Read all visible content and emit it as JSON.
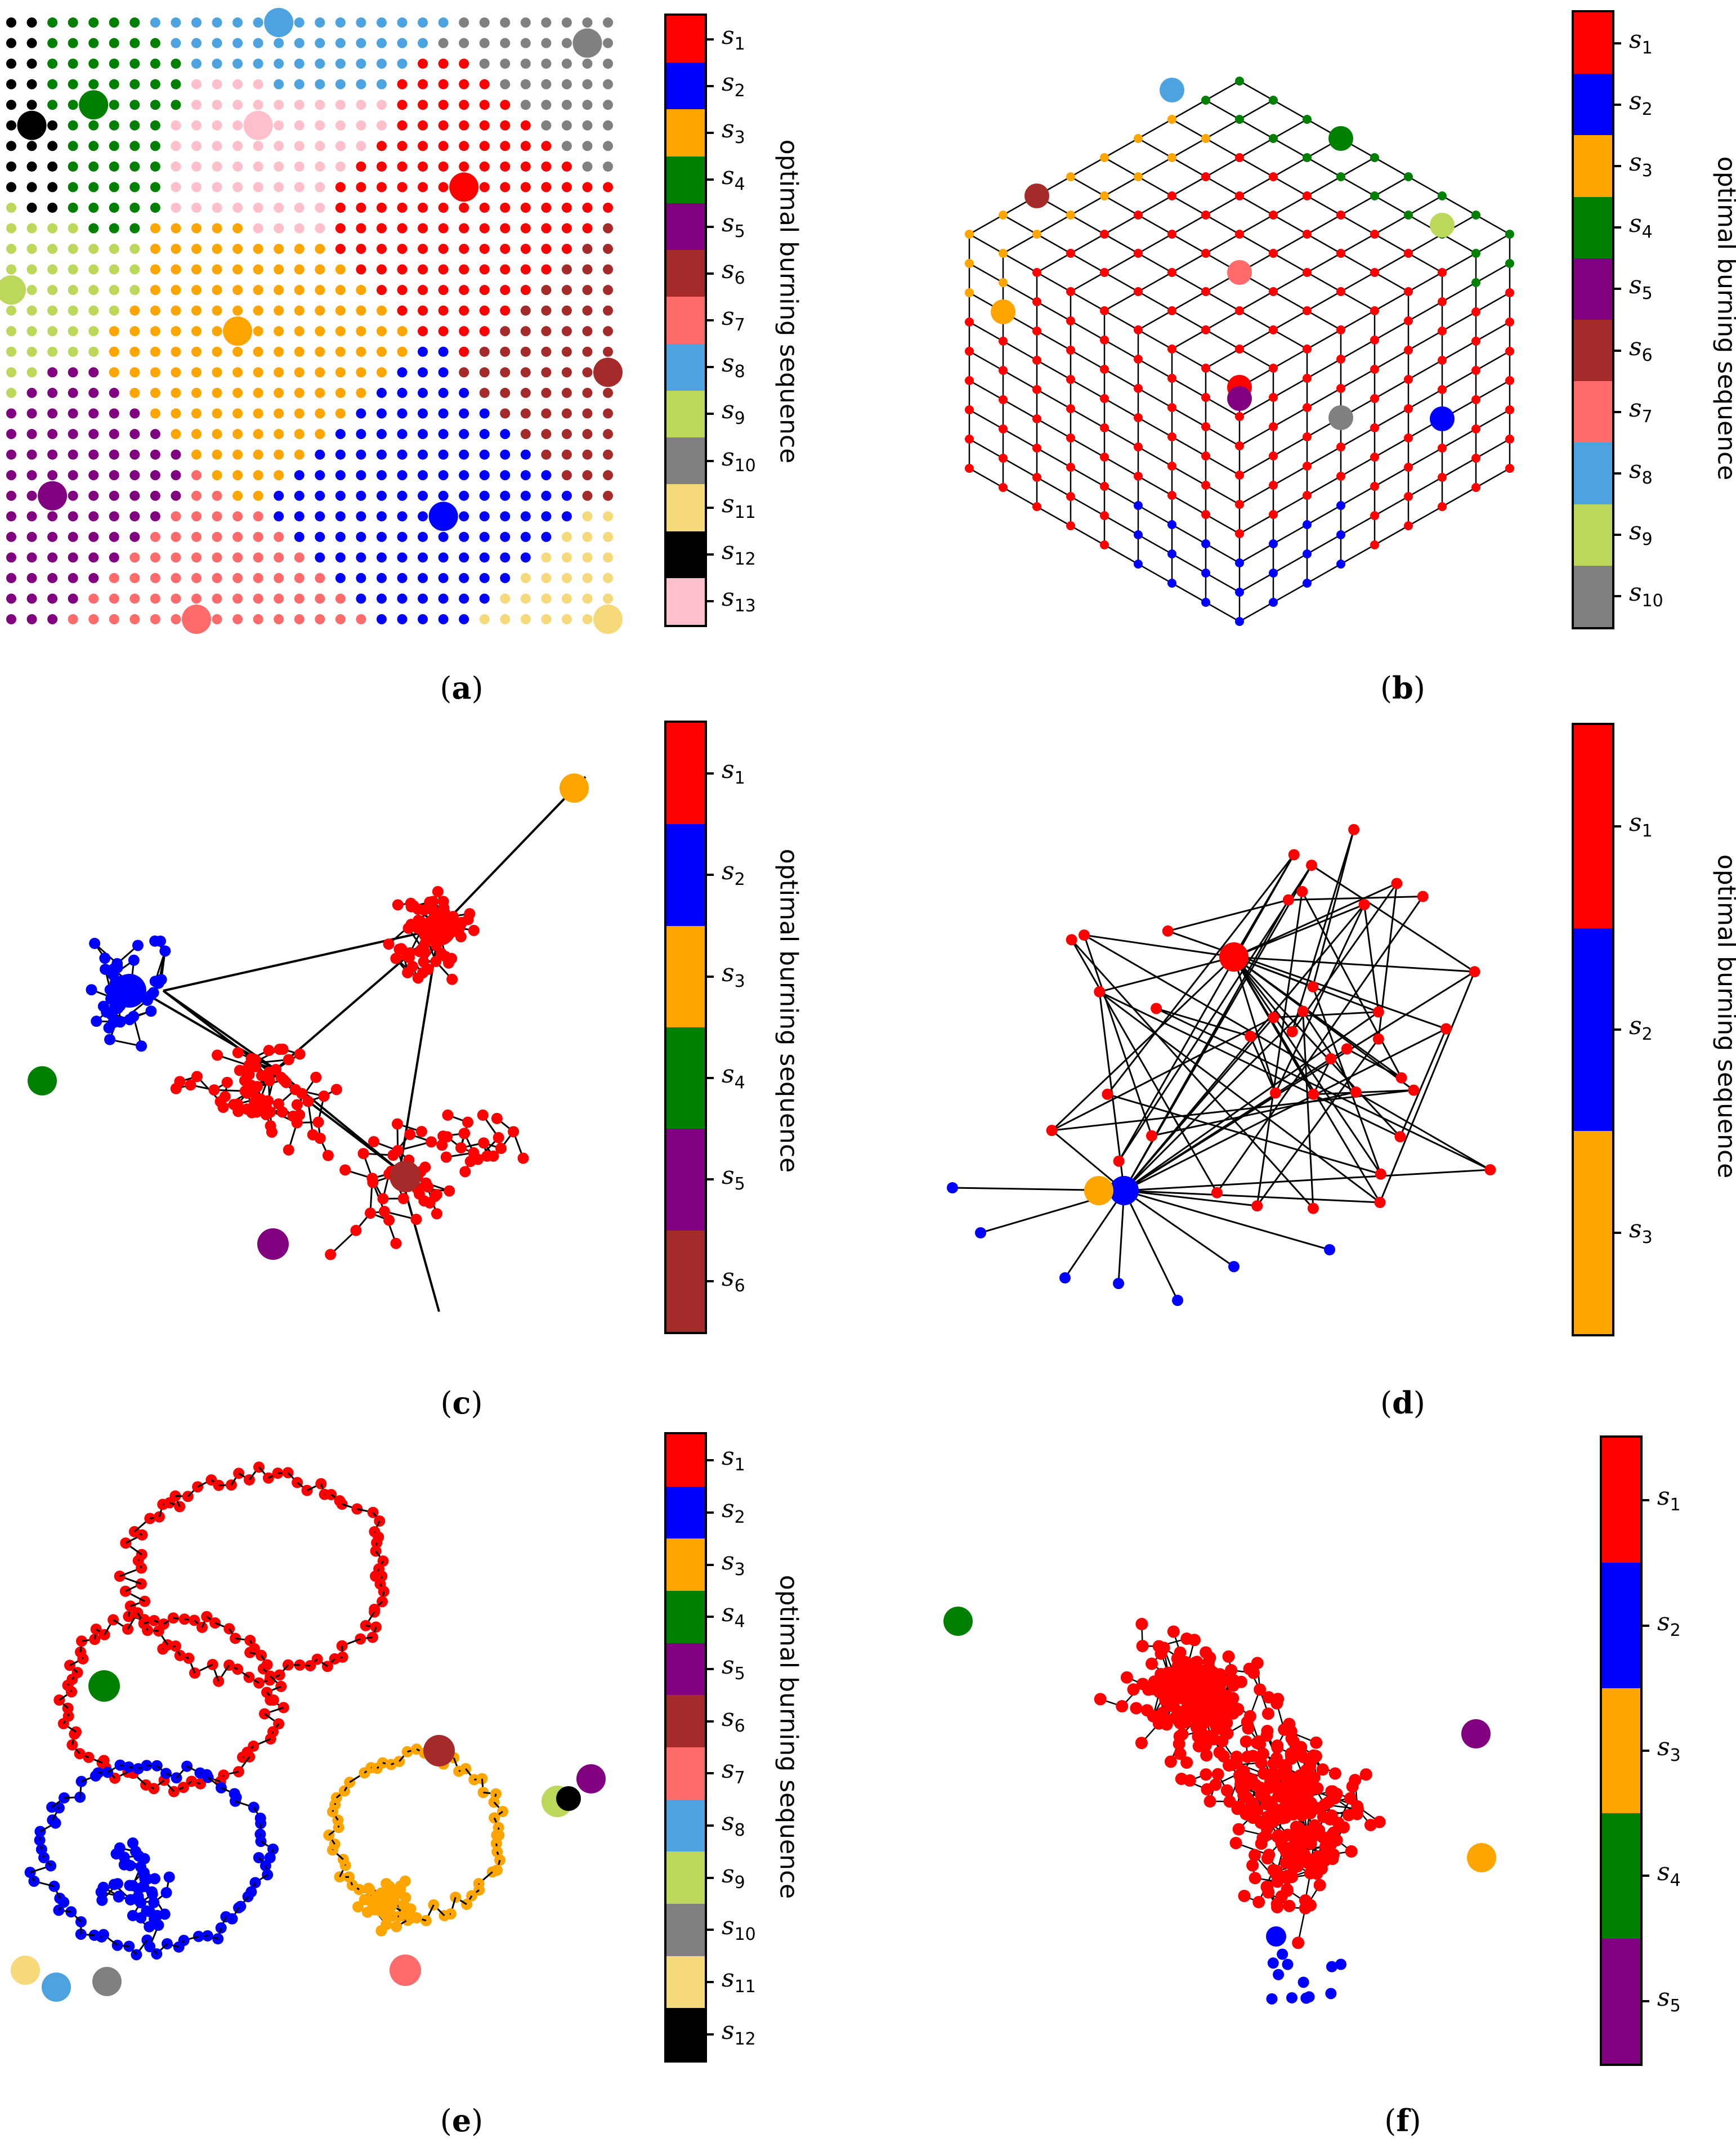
{
  "figure": {
    "colorbar_title": "optimal burning sequence",
    "colors": {
      "s1": "#ff0000",
      "s2": "#0000ff",
      "s3": "#ffa500",
      "s4": "#008000",
      "s5": "#800080",
      "s6": "#a52a2a",
      "s7": "#ff6b6b",
      "s8": "#4da3e0",
      "s9": "#bcd85a",
      "s10": "#808080",
      "s11": "#f5d97a",
      "s12": "#000000",
      "s13": "#ffc0cb",
      "edge": "#000000"
    },
    "panels": [
      {
        "id": "a",
        "caption": "a",
        "graph": "square-grid",
        "sequence_length": 13
      },
      {
        "id": "b",
        "caption": "b",
        "graph": "cube-lattice",
        "sequence_length": 10
      },
      {
        "id": "c",
        "caption": "c",
        "graph": "tree-network",
        "sequence_length": 6
      },
      {
        "id": "d",
        "caption": "d",
        "graph": "small-network",
        "sequence_length": 3
      },
      {
        "id": "e",
        "caption": "e",
        "graph": "looped-network",
        "sequence_length": 12
      },
      {
        "id": "f",
        "caption": "f",
        "graph": "dense-network",
        "sequence_length": 5
      }
    ]
  }
}
